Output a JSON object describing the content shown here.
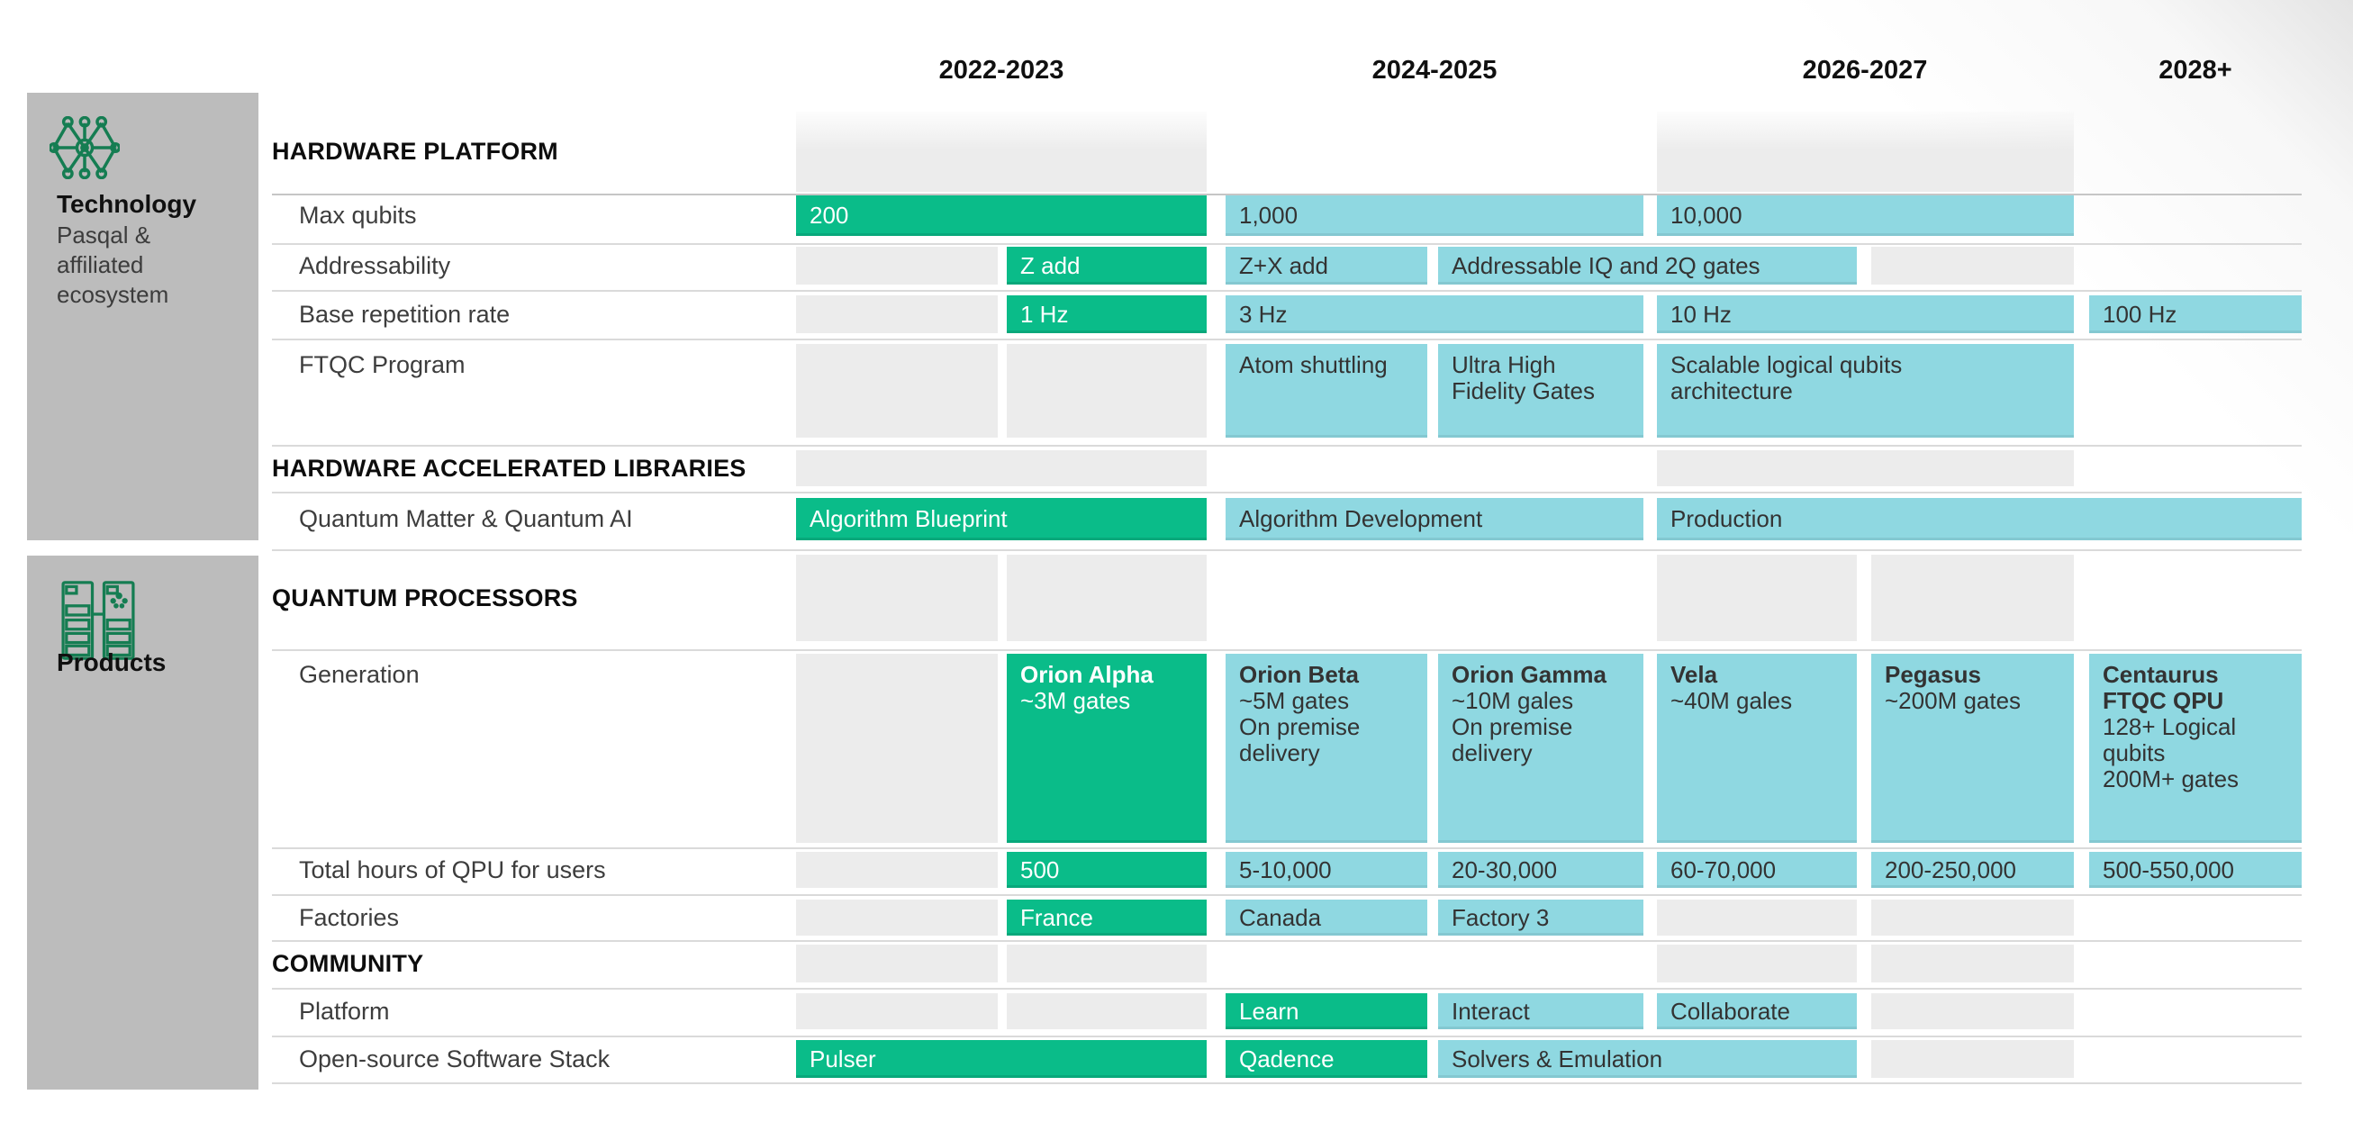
{
  "colors": {
    "green": "#0abc89",
    "blue": "#8fd8e1",
    "gray_cell": "#ececec",
    "sidebar_gray": "#bcbcbc",
    "icon_green": "#157d52"
  },
  "header": {
    "columns": [
      "2022-2023",
      "2024-2025",
      "2026-2027",
      "2028+"
    ]
  },
  "sidebar": {
    "groups": [
      {
        "title": "Technology",
        "subtitle": "Pasqal & affiliated ecosystem",
        "icon": "network-icon"
      },
      {
        "title": "Products",
        "subtitle": "",
        "icon": "server-racks-icon"
      }
    ]
  },
  "rows": [
    {
      "kind": "section",
      "label": "HARDWARE PLATFORM",
      "cells": [
        {
          "col": "A",
          "variant": "gray-fade"
        },
        {
          "col": "C",
          "variant": "gray-fade"
        }
      ]
    },
    {
      "kind": "item",
      "label": "Max qubits",
      "cells": [
        {
          "col": "A",
          "variant": "green",
          "text": "200"
        },
        {
          "col": "B",
          "variant": "blue",
          "text": "1,000"
        },
        {
          "col": "C",
          "variant": "blue",
          "text": "10,000"
        }
      ]
    },
    {
      "kind": "item",
      "label": "Addressability",
      "cells": [
        {
          "col": "A1",
          "variant": "gray"
        },
        {
          "col": "A2",
          "variant": "green",
          "text": "Z add"
        },
        {
          "col": "B1",
          "variant": "blue",
          "text": "Z+X add"
        },
        {
          "col": "B2C1",
          "variant": "blue",
          "text": "Addressable IQ and 2Q gates"
        },
        {
          "col": "C2",
          "variant": "gray"
        }
      ]
    },
    {
      "kind": "item",
      "label": "Base repetition rate",
      "cells": [
        {
          "col": "A1",
          "variant": "gray"
        },
        {
          "col": "A2",
          "variant": "green",
          "text": "1 Hz"
        },
        {
          "col": "B",
          "variant": "blue",
          "text": "3 Hz"
        },
        {
          "col": "C",
          "variant": "blue",
          "text": "10 Hz"
        },
        {
          "col": "D",
          "variant": "blue",
          "text": "100 Hz"
        }
      ]
    },
    {
      "kind": "item",
      "label": "FTQC Program",
      "cells": [
        {
          "col": "A1",
          "variant": "gray"
        },
        {
          "col": "A2",
          "variant": "gray"
        },
        {
          "col": "B1",
          "variant": "blue",
          "text": "Atom shuttling"
        },
        {
          "col": "B2",
          "variant": "blue",
          "text": "Ultra High\nFidelity Gates"
        },
        {
          "col": "C",
          "variant": "blue",
          "text": "Scalable logical qubits\narchitecture"
        }
      ]
    },
    {
      "kind": "section",
      "label": "HARDWARE ACCELERATED LIBRARIES",
      "cells": [
        {
          "col": "A",
          "variant": "gray"
        },
        {
          "col": "C",
          "variant": "gray"
        }
      ]
    },
    {
      "kind": "item",
      "label": "Quantum Matter & Quantum AI",
      "cells": [
        {
          "col": "A",
          "variant": "green",
          "text": "Algorithm Blueprint"
        },
        {
          "col": "B",
          "variant": "blue",
          "text": "Algorithm Development"
        },
        {
          "col": "CD",
          "variant": "blue",
          "text": "Production"
        }
      ]
    },
    {
      "kind": "section",
      "label": "QUANTUM PROCESSORS",
      "cells": [
        {
          "col": "A1",
          "variant": "gray"
        },
        {
          "col": "A2",
          "variant": "gray"
        },
        {
          "col": "C1",
          "variant": "gray"
        },
        {
          "col": "C2",
          "variant": "gray"
        }
      ]
    },
    {
      "kind": "item",
      "label": "Generation",
      "cells": [
        {
          "col": "A1",
          "variant": "gray"
        },
        {
          "col": "A2",
          "variant": "green",
          "title": "Orion Alpha",
          "text": "~3M gates"
        },
        {
          "col": "B1",
          "variant": "blue",
          "title": "Orion Beta",
          "text": "~5M gates\nOn premise\ndelivery"
        },
        {
          "col": "B2",
          "variant": "blue",
          "title": "Orion Gamma",
          "text": "~10M gales\nOn premise\ndelivery"
        },
        {
          "col": "C1",
          "variant": "blue",
          "title": "Vela",
          "text": "~40M gales"
        },
        {
          "col": "C2",
          "variant": "blue",
          "title": "Pegasus",
          "text": "~200M gates"
        },
        {
          "col": "D",
          "variant": "blue",
          "title": "Centaurus\nFTQC QPU",
          "text": "128+ Logical\nqubits\n200M+ gates"
        }
      ]
    },
    {
      "kind": "item",
      "label": "Total hours of QPU for users",
      "cells": [
        {
          "col": "A1",
          "variant": "gray"
        },
        {
          "col": "A2",
          "variant": "green",
          "text": "500"
        },
        {
          "col": "B1",
          "variant": "blue",
          "text": "5-10,000"
        },
        {
          "col": "B2",
          "variant": "blue",
          "text": "20-30,000"
        },
        {
          "col": "C1",
          "variant": "blue",
          "text": "60-70,000"
        },
        {
          "col": "C2",
          "variant": "blue",
          "text": "200-250,000"
        },
        {
          "col": "D",
          "variant": "blue",
          "text": "500-550,000"
        }
      ]
    },
    {
      "kind": "item",
      "label": "Factories",
      "cells": [
        {
          "col": "A1",
          "variant": "gray"
        },
        {
          "col": "A2",
          "variant": "green",
          "text": "France"
        },
        {
          "col": "B1",
          "variant": "blue",
          "text": "Canada"
        },
        {
          "col": "B2",
          "variant": "blue",
          "text": "Factory 3"
        },
        {
          "col": "C1",
          "variant": "gray"
        },
        {
          "col": "C2",
          "variant": "gray"
        }
      ]
    },
    {
      "kind": "section",
      "label": "COMMUNITY",
      "cells": [
        {
          "col": "A1",
          "variant": "gray"
        },
        {
          "col": "A2",
          "variant": "gray"
        },
        {
          "col": "C1",
          "variant": "gray"
        },
        {
          "col": "C2",
          "variant": "gray"
        }
      ]
    },
    {
      "kind": "item",
      "label": "Platform",
      "cells": [
        {
          "col": "A1",
          "variant": "gray"
        },
        {
          "col": "A2",
          "variant": "gray"
        },
        {
          "col": "B1",
          "variant": "green",
          "text": "Learn"
        },
        {
          "col": "B2",
          "variant": "blue",
          "text": "Interact"
        },
        {
          "col": "C1",
          "variant": "blue",
          "text": "Collaborate"
        },
        {
          "col": "C2",
          "variant": "gray"
        }
      ]
    },
    {
      "kind": "item",
      "label": "Open-source Software Stack",
      "cells": [
        {
          "col": "A",
          "variant": "green",
          "text": "Pulser"
        },
        {
          "col": "B1",
          "variant": "green",
          "text": "Qadence"
        },
        {
          "col": "B2C1",
          "variant": "blue",
          "text": "Solvers & Emulation"
        },
        {
          "col": "C2",
          "variant": "gray"
        }
      ]
    }
  ]
}
